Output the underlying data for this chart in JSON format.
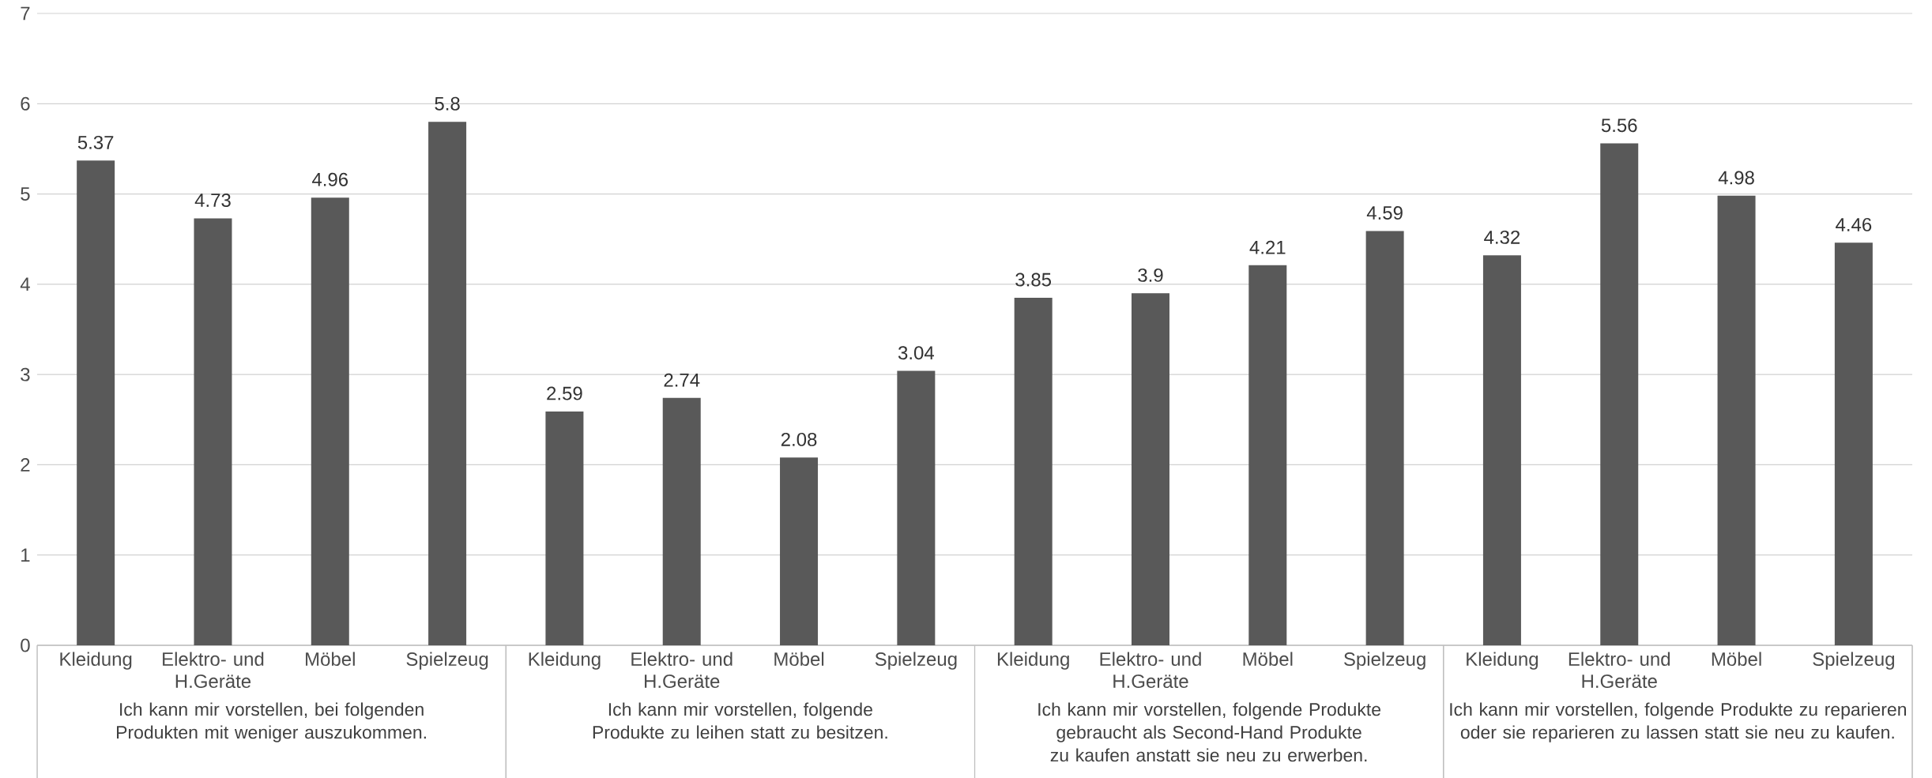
{
  "chart_data": {
    "type": "bar",
    "categories": [
      "Kleidung",
      "Elektro- und H.Geräte",
      "Möbel",
      "Spielzeug",
      "Kleidung",
      "Elektro- und H.Geräte",
      "Möbel",
      "Spielzeug",
      "Kleidung",
      "Elektro- und H.Geräte",
      "Möbel",
      "Spielzeug",
      "Kleidung",
      "Elektro- und H.Geräte",
      "Möbel",
      "Spielzeug"
    ],
    "values": [
      5.37,
      4.73,
      4.96,
      5.8,
      2.59,
      2.74,
      2.08,
      3.04,
      3.85,
      3.9,
      4.21,
      4.59,
      4.32,
      5.56,
      4.98,
      4.46
    ],
    "color": "#595959",
    "ylim": [
      0,
      7
    ],
    "yticks": [
      0,
      1,
      2,
      3,
      4,
      5,
      6,
      7
    ],
    "grid": "y",
    "data_labels": true,
    "annotations": [
      "Ich kann mir vorstellen, bei folgenden Produkten mit weniger auszukommen.",
      "Ich kann mir vorstellen, folgende Produkte zu leihen statt zu besitzen.",
      "Ich kann mir vorstellen, folgende Produkte gebraucht als Second-Hand Produkte zu kaufen anstatt sie neu zu erwerben.",
      "Ich kann mir vorstellen, folgende Produkte zu reparieren oder sie reparieren zu lassen statt sie neu zu kaufen."
    ]
  }
}
